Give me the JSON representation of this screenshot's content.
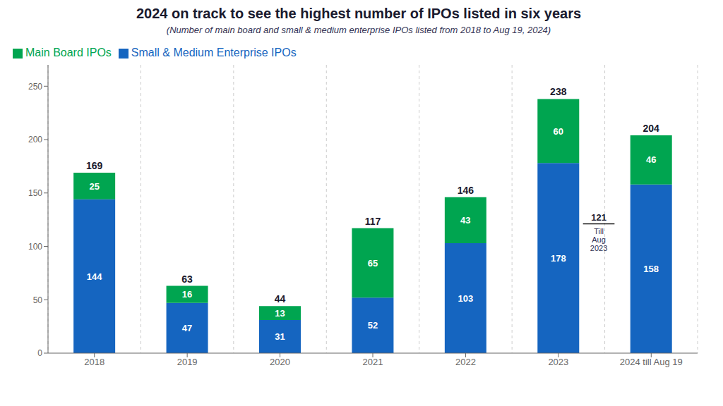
{
  "chart_data": {
    "type": "bar",
    "stacked": true,
    "title": "2024 on track to see the highest number of IPOs listed in six years",
    "subtitle": "(Number of main board and small & medium enterprise IPOs listed from 2018 to Aug 19, 2024)",
    "categories": [
      "2018",
      "2019",
      "2020",
      "2021",
      "2022",
      "2023",
      "2024 till Aug 19"
    ],
    "series": [
      {
        "name": "Small & Medium Enterprise IPOs",
        "color": "#1565C0",
        "values": [
          144,
          47,
          31,
          52,
          103,
          178,
          158
        ]
      },
      {
        "name": "Main Board IPOs",
        "color": "#00A550",
        "values": [
          25,
          16,
          13,
          65,
          43,
          60,
          46
        ]
      }
    ],
    "totals": [
      169,
      63,
      44,
      117,
      146,
      238,
      204
    ],
    "ylim": [
      0,
      270
    ],
    "yticks": [
      0,
      50,
      100,
      150,
      200,
      250
    ],
    "grid": "x",
    "legend": "upper left",
    "data_labels": true,
    "annotations": [
      {
        "category": "2023",
        "y": 121,
        "text": "121",
        "subtext": "Till\nAug\n2023"
      }
    ]
  }
}
